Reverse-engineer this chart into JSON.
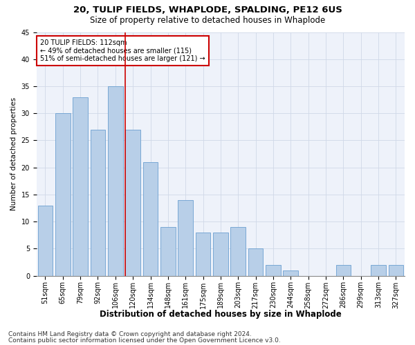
{
  "title1": "20, TULIP FIELDS, WHAPLODE, SPALDING, PE12 6US",
  "title2": "Size of property relative to detached houses in Whaplode",
  "xlabel": "Distribution of detached houses by size in Whaplode",
  "ylabel": "Number of detached properties",
  "categories": [
    "51sqm",
    "65sqm",
    "79sqm",
    "92sqm",
    "106sqm",
    "120sqm",
    "134sqm",
    "148sqm",
    "161sqm",
    "175sqm",
    "189sqm",
    "203sqm",
    "217sqm",
    "230sqm",
    "244sqm",
    "258sqm",
    "272sqm",
    "286sqm",
    "299sqm",
    "313sqm",
    "327sqm"
  ],
  "values": [
    13,
    30,
    33,
    27,
    35,
    27,
    21,
    9,
    14,
    8,
    8,
    9,
    5,
    2,
    1,
    0,
    0,
    2,
    0,
    2,
    2
  ],
  "bar_color": "#b8cfe8",
  "bar_edge_color": "#6a9fd0",
  "bar_width": 0.85,
  "vline_x": 4.57,
  "vline_color": "#cc0000",
  "ylim": [
    0,
    45
  ],
  "yticks": [
    0,
    5,
    10,
    15,
    20,
    25,
    30,
    35,
    40,
    45
  ],
  "annotation_title": "20 TULIP FIELDS: 112sqm",
  "annotation_line1": "← 49% of detached houses are smaller (115)",
  "annotation_line2": "51% of semi-detached houses are larger (121) →",
  "annotation_box_color": "#ffffff",
  "annotation_box_edge": "#cc0000",
  "footer1": "Contains HM Land Registry data © Crown copyright and database right 2024.",
  "footer2": "Contains public sector information licensed under the Open Government Licence v3.0.",
  "grid_color": "#d0d8e8",
  "bg_color": "#eef2fa",
  "title1_fontsize": 9.5,
  "title2_fontsize": 8.5,
  "xlabel_fontsize": 8.5,
  "ylabel_fontsize": 7.5,
  "tick_fontsize": 7,
  "annotation_fontsize": 7,
  "footer_fontsize": 6.5
}
